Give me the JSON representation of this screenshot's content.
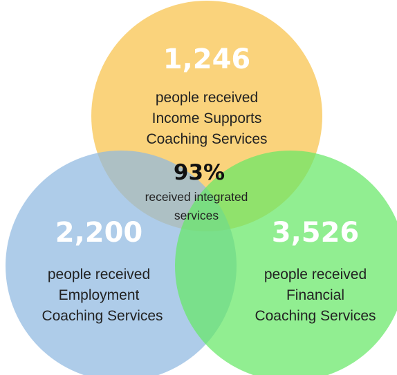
{
  "colors": {
    "income": "#f8c24a",
    "employment": "#8fb8e0",
    "financial": "#66e866"
  },
  "sets": {
    "income": {
      "count": "1,246",
      "lines": [
        "people received",
        "Income Supports",
        "Coaching Services"
      ]
    },
    "employment": {
      "count": "2,200",
      "lines": [
        "people received",
        "Employment",
        "Coaching Services"
      ]
    },
    "financial": {
      "count": "3,526",
      "lines": [
        "people received",
        "Financial",
        "Coaching Services"
      ]
    }
  },
  "center": {
    "percent": "93%",
    "lines": [
      "received integrated",
      "services"
    ]
  }
}
